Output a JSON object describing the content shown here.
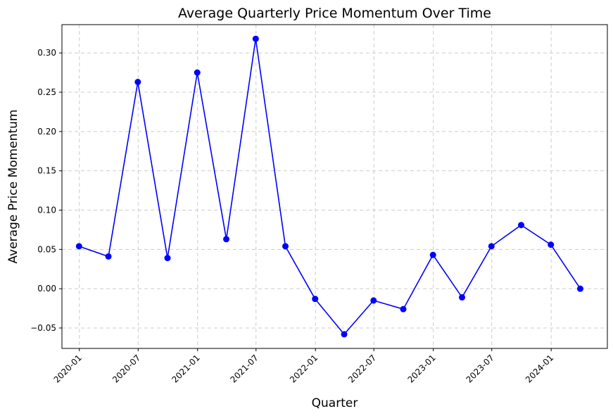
{
  "chart_data": {
    "type": "line",
    "title": "Average Quarterly Price Momentum Over Time",
    "xlabel": "Quarter",
    "ylabel": "Average Price Momentum",
    "x_tick_labels": [
      "2020-01",
      "2020-07",
      "2021-01",
      "2021-07",
      "2022-01",
      "2022-07",
      "2023-01",
      "2023-07",
      "2024-01"
    ],
    "y_tick_labels": [
      "−0.05",
      "0.00",
      "0.05",
      "0.10",
      "0.15",
      "0.20",
      "0.25",
      "0.30"
    ],
    "y_ticks": [
      -0.05,
      0.0,
      0.05,
      0.1,
      0.15,
      0.2,
      0.25,
      0.3
    ],
    "ylim": [
      -0.076,
      0.336
    ],
    "xlim": [
      "2019-11-08",
      "2024-06-23"
    ],
    "grid": true,
    "line_color": "#0000ff",
    "series": [
      {
        "x": [
          "2019-12-31",
          "2020-03-31",
          "2020-06-30",
          "2020-09-30",
          "2020-12-31",
          "2021-03-31",
          "2021-06-30",
          "2021-09-30",
          "2021-12-31",
          "2022-03-31",
          "2022-06-30",
          "2022-09-30",
          "2022-12-31",
          "2023-03-31",
          "2023-06-30",
          "2023-09-30",
          "2023-12-31",
          "2024-03-31"
        ],
        "values": [
          0.054,
          0.041,
          0.263,
          0.039,
          0.275,
          0.063,
          0.318,
          0.054,
          -0.013,
          -0.058,
          -0.015,
          -0.026,
          0.043,
          -0.011,
          0.054,
          0.081,
          0.056,
          0.0
        ]
      }
    ]
  }
}
